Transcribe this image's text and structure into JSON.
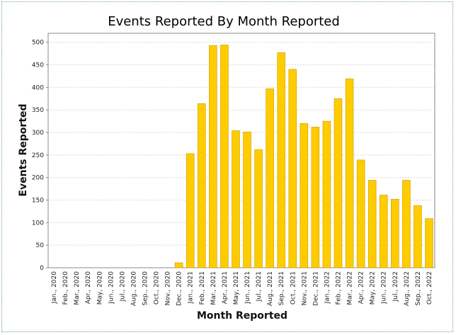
{
  "chart_data": {
    "type": "bar",
    "title": "Events Reported By Month Reported",
    "xlabel": "Month Reported",
    "ylabel": "Events Reported",
    "ylim": [
      0,
      520
    ],
    "yticks": [
      0,
      50,
      100,
      150,
      200,
      250,
      300,
      350,
      400,
      450,
      500
    ],
    "grid": true,
    "categories": [
      "Jan., 2020",
      "Feb., 2020",
      "Mar., 2020",
      "Apr., 2020",
      "May, 2020",
      "Jun., 2020",
      "Jul., 2020",
      "Aug., 2020",
      "Sep., 2020",
      "Oct., 2020",
      "Nov., 2020",
      "Dec., 2020",
      "Jan., 2021",
      "Feb., 2021",
      "Mar., 2021",
      "Apr., 2021",
      "May, 2021",
      "Jun., 2021",
      "Jul., 2021",
      "Aug., 2021",
      "Sep., 2021",
      "Oct., 2021",
      "Nov., 2021",
      "Dec., 2021",
      "Jan., 2022",
      "Feb., 2022",
      "Mar., 2022",
      "Apr., 2022",
      "May, 2022",
      "Jun., 2022",
      "Jul., 2022",
      "Aug., 2022",
      "Sep., 2022",
      "Oct., 2022"
    ],
    "values": [
      0,
      0,
      0,
      0,
      0,
      0,
      0,
      0,
      0,
      0,
      0,
      11,
      253,
      364,
      493,
      494,
      304,
      301,
      262,
      397,
      477,
      440,
      320,
      312,
      325,
      375,
      419,
      239,
      194,
      161,
      152,
      194,
      138,
      109
    ],
    "colors": {
      "bar_fill": "#ffcc00",
      "bar_stroke": "#c99a00",
      "grid": "#d8d8d8",
      "axis": "#888888"
    }
  }
}
